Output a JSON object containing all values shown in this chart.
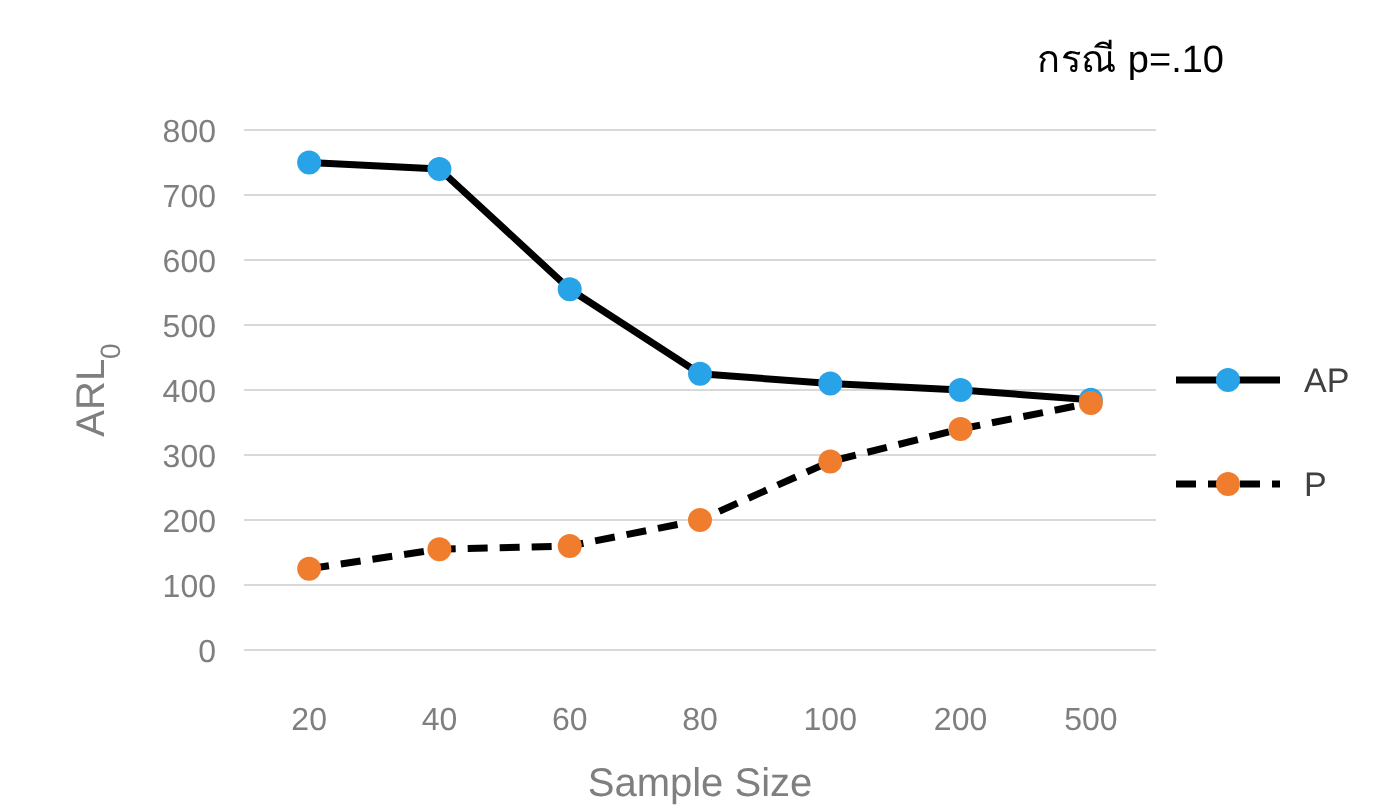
{
  "chart_data": {
    "type": "line",
    "title": "กรณี p=.10",
    "xlabel": "Sample Size",
    "ylabel": "ARL$_{0}$",
    "categories": [
      "20",
      "40",
      "60",
      "80",
      "100",
      "200",
      "500"
    ],
    "series": [
      {
        "name": "AP",
        "color": "#000000",
        "colors": [
          "#29a3e8",
          "#29a3e8",
          "#29a3e8",
          "#29a3e8",
          "#29a3e8",
          "#29a3e8",
          "#29a3e8"
        ],
        "line_style": "solid",
        "values": [
          750,
          740,
          555,
          425,
          410,
          400,
          385
        ]
      },
      {
        "name": "P",
        "color": "#000000",
        "colors": [
          "#f07d2e",
          "#f07d2e",
          "#f07d2e",
          "#f07d2e",
          "#f07d2e",
          "#f07d2e",
          "#f07d2e"
        ],
        "line_style": "dashed",
        "values": [
          125,
          155,
          160,
          200,
          290,
          340,
          380
        ]
      }
    ],
    "ylim": [
      0,
      800
    ],
    "yticks": [
      0,
      100,
      200,
      300,
      400,
      500,
      600,
      700,
      800
    ],
    "grid": "y",
    "legend": "right",
    "marker": "circle"
  }
}
